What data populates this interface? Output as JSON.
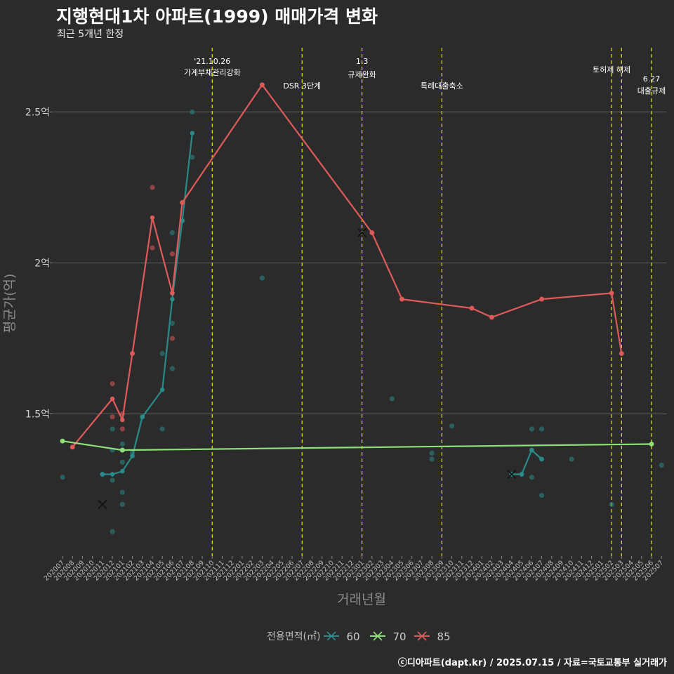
{
  "title": "지행현대1차 아파트(1999) 매매가격 변화",
  "subtitle": "최근 5개년 한정",
  "footer": "ⓒ디아파트(dapt.kr) / 2025.07.15 / 자료=국토교통부 실거래가",
  "colors": {
    "background": "#2b2b2b",
    "grid": "#555555",
    "event_line": "#e6e600",
    "s60": "#2a8a8a",
    "s70": "#8fe07a",
    "s85": "#e05a5a"
  },
  "chart_data": {
    "type": "line",
    "xlabel": "거래년월",
    "ylabel": "평균가(억)",
    "ylim": [
      1.0,
      2.7
    ],
    "yticks": [
      {
        "value": 1.5,
        "label": "1.5억"
      },
      {
        "value": 2.0,
        "label": "2억"
      },
      {
        "value": 2.5,
        "label": "2.5억"
      }
    ],
    "x": [
      "202007",
      "202008",
      "202009",
      "202010",
      "202011",
      "202012",
      "202101",
      "202102",
      "202103",
      "202104",
      "202105",
      "202106",
      "202107",
      "202108",
      "202109",
      "202110",
      "202111",
      "202112",
      "202201",
      "202202",
      "202203",
      "202204",
      "202205",
      "202206",
      "202207",
      "202208",
      "202209",
      "202210",
      "202211",
      "202212",
      "202301",
      "202302",
      "202303",
      "202304",
      "202305",
      "202306",
      "202307",
      "202308",
      "202309",
      "202310",
      "202311",
      "202312",
      "202401",
      "202402",
      "202403",
      "202404",
      "202405",
      "202406",
      "202407",
      "202408",
      "202409",
      "202410",
      "202411",
      "202412",
      "202501",
      "202502",
      "202503",
      "202504",
      "202505",
      "202506",
      "202507"
    ],
    "legend": {
      "title": "전용면적(㎡)",
      "position": "bottom"
    },
    "series": [
      {
        "name": "60",
        "color": "#2a8a8a",
        "line": [
          [
            "202011",
            1.3
          ],
          [
            "202012",
            1.3
          ],
          [
            "202101",
            1.31
          ],
          [
            "202102",
            1.36
          ],
          [
            "202103",
            1.49
          ],
          [
            "202105",
            1.58
          ],
          [
            "202106",
            1.88
          ],
          [
            "202107",
            2.14
          ],
          [
            "202108",
            2.43
          ]
        ],
        "line2": [
          [
            "202404",
            1.3
          ],
          [
            "202405",
            1.3
          ],
          [
            "202406",
            1.38
          ],
          [
            "202407",
            1.35
          ]
        ],
        "points": [
          [
            "202007",
            1.29
          ],
          [
            "202011",
            1.3
          ],
          [
            "202012",
            1.45
          ],
          [
            "202012",
            1.38
          ],
          [
            "202012",
            1.28
          ],
          [
            "202012",
            1.11
          ],
          [
            "202101",
            1.4
          ],
          [
            "202101",
            1.38
          ],
          [
            "202101",
            1.34
          ],
          [
            "202101",
            1.24
          ],
          [
            "202101",
            1.2
          ],
          [
            "202102",
            1.37
          ],
          [
            "202103",
            1.49
          ],
          [
            "202105",
            1.7
          ],
          [
            "202105",
            1.45
          ],
          [
            "202106",
            2.1
          ],
          [
            "202106",
            1.8
          ],
          [
            "202106",
            1.65
          ],
          [
            "202107",
            2.14
          ],
          [
            "202108",
            2.5
          ],
          [
            "202108",
            2.35
          ],
          [
            "202203",
            1.95
          ],
          [
            "202304",
            1.55
          ],
          [
            "202308",
            1.37
          ],
          [
            "202308",
            1.35
          ],
          [
            "202310",
            1.46
          ],
          [
            "202404",
            1.3
          ],
          [
            "202405",
            1.3
          ],
          [
            "202406",
            1.45
          ],
          [
            "202406",
            1.29
          ],
          [
            "202406",
            1.38
          ],
          [
            "202407",
            1.45
          ],
          [
            "202407",
            1.35
          ],
          [
            "202407",
            1.23
          ],
          [
            "202410",
            1.35
          ],
          [
            "202502",
            1.2
          ],
          [
            "202507",
            1.33
          ]
        ],
        "cancelled": [
          [
            "202011",
            1.2
          ],
          [
            "202404",
            1.3
          ]
        ]
      },
      {
        "name": "70",
        "color": "#8fe07a",
        "line": [
          [
            "202007",
            1.41
          ],
          [
            "202101",
            1.38
          ],
          [
            "202506",
            1.4
          ]
        ],
        "points": [
          [
            "202007",
            1.41
          ],
          [
            "202101",
            1.38
          ],
          [
            "202506",
            1.4
          ]
        ],
        "cancelled": []
      },
      {
        "name": "85",
        "color": "#e05a5a",
        "line": [
          [
            "202008",
            1.39
          ],
          [
            "202012",
            1.55
          ],
          [
            "202101",
            1.48
          ],
          [
            "202102",
            1.7
          ],
          [
            "202104",
            2.15
          ],
          [
            "202106",
            1.9
          ],
          [
            "202107",
            2.2
          ],
          [
            "202203",
            2.59
          ],
          [
            "202302",
            2.1
          ],
          [
            "202305",
            1.88
          ],
          [
            "202312",
            1.85
          ],
          [
            "202402",
            1.82
          ],
          [
            "202407",
            1.88
          ],
          [
            "202502",
            1.9
          ],
          [
            "202503",
            1.7
          ]
        ],
        "points": [
          [
            "202008",
            1.39
          ],
          [
            "202012",
            1.6
          ],
          [
            "202012",
            1.49
          ],
          [
            "202101",
            1.5
          ],
          [
            "202101",
            1.45
          ],
          [
            "202102",
            1.7
          ],
          [
            "202104",
            2.25
          ],
          [
            "202104",
            2.05
          ],
          [
            "202106",
            2.03
          ],
          [
            "202106",
            1.9
          ],
          [
            "202106",
            1.75
          ],
          [
            "202107",
            2.2
          ],
          [
            "202203",
            2.59
          ],
          [
            "202302",
            2.1
          ],
          [
            "202305",
            1.88
          ],
          [
            "202312",
            1.85
          ],
          [
            "202402",
            1.82
          ],
          [
            "202407",
            1.88
          ],
          [
            "202502",
            1.9
          ],
          [
            "202503",
            1.7
          ]
        ],
        "cancelled": [
          [
            "202301",
            2.1
          ]
        ]
      }
    ],
    "events": [
      {
        "x": "202110",
        "lines": [
          "'21.10.26",
          "가계부채관리강화"
        ]
      },
      {
        "x": "202207",
        "lines": [
          "DSR 3단계"
        ]
      },
      {
        "x": "202301",
        "lines": [
          "1.3",
          "규제완화"
        ]
      },
      {
        "x": "202309",
        "lines": [
          "특례대출축소"
        ]
      },
      {
        "x": "202502",
        "lines": [
          "토허제 해제"
        ]
      },
      {
        "x": "202503",
        "lines": []
      },
      {
        "x": "202506",
        "lines": [
          "6.27",
          "대출규제"
        ]
      }
    ]
  }
}
